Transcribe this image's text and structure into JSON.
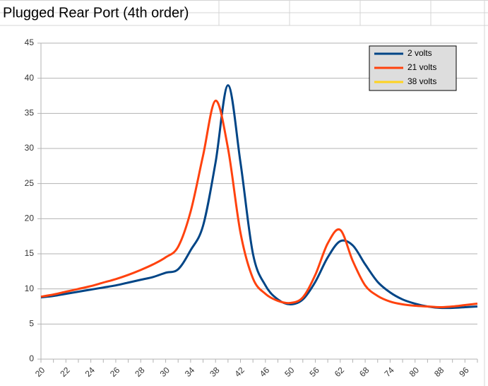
{
  "chart_data": {
    "type": "line",
    "title": "Plugged Rear Port (4th order)",
    "categories": [
      "20",
      null,
      "22",
      null,
      "24",
      null,
      "26",
      null,
      "28",
      null,
      "30",
      null,
      "34",
      null,
      "38",
      null,
      "42",
      null,
      "46",
      null,
      "50",
      null,
      "56",
      null,
      "62",
      null,
      "68",
      null,
      "74",
      null,
      "80",
      null,
      "88",
      null,
      "96",
      null
    ],
    "series": [
      {
        "name": "2 volts",
        "color": "#004586",
        "values": [
          8.8,
          9.0,
          9.3,
          9.6,
          9.9,
          10.2,
          10.5,
          10.9,
          11.3,
          11.7,
          12.3,
          12.8,
          15.5,
          19,
          28,
          39,
          28,
          15,
          10.5,
          8.5,
          7.8,
          8.5,
          11,
          14.5,
          16.8,
          16.2,
          13.5,
          11,
          9.5,
          8.5,
          7.9,
          7.5,
          7.3,
          7.3,
          7.4,
          7.5
        ]
      },
      {
        "name": "21 volts",
        "color": "#ff420e",
        "values": [
          8.9,
          9.2,
          9.6,
          10.0,
          10.4,
          10.9,
          11.4,
          12.0,
          12.7,
          13.5,
          14.5,
          16,
          21,
          29,
          36.8,
          30,
          18,
          11.5,
          9.3,
          8.3,
          8.0,
          8.8,
          12,
          16.5,
          18.4,
          14,
          10.5,
          9.0,
          8.2,
          7.8,
          7.6,
          7.5,
          7.4,
          7.5,
          7.7,
          7.9
        ]
      },
      {
        "name": "38 volts",
        "color": "#ffd320",
        "values": [
          null,
          null,
          null,
          null,
          null,
          null,
          null,
          null,
          null,
          null,
          null,
          null,
          null,
          null,
          null,
          null,
          null,
          null,
          null,
          null,
          null,
          null,
          null,
          null,
          null,
          null,
          null,
          null,
          null,
          null,
          null,
          null,
          null,
          null,
          null,
          null
        ]
      }
    ],
    "ylim": [
      0,
      45
    ],
    "yticks": [
      0,
      5,
      10,
      15,
      20,
      25,
      30,
      35,
      40,
      45
    ],
    "grid": true,
    "legend": "top-right"
  }
}
